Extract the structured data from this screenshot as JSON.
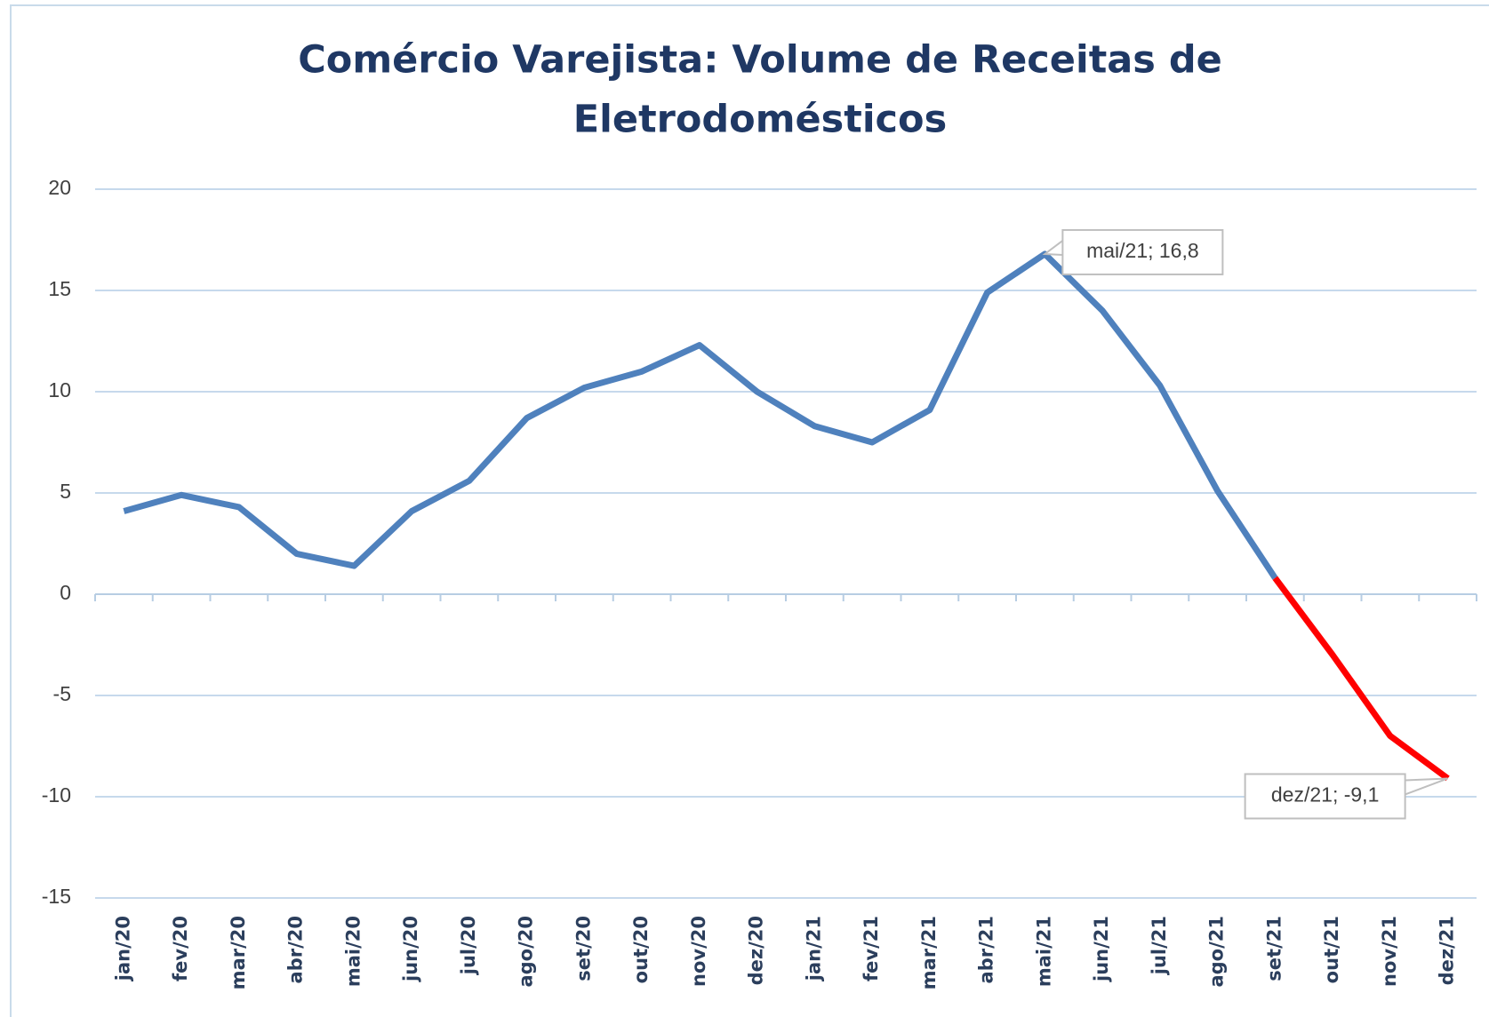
{
  "chart_data": {
    "type": "line",
    "title": "Comércio Varejista: Volume de Receitas de Eletrodomésticos",
    "categories": [
      "jan/20",
      "fev/20",
      "mar/20",
      "abr/20",
      "mai/20",
      "jun/20",
      "jul/20",
      "ago/20",
      "set/20",
      "out/20",
      "nov/20",
      "dez/20",
      "jan/21",
      "fev/21",
      "mar/21",
      "abr/21",
      "mai/21",
      "jun/21",
      "jul/21",
      "ago/21",
      "set/21",
      "out/21",
      "nov/21",
      "dez/21"
    ],
    "series": [
      {
        "color": "#4f81bd",
        "values": [
          4.1,
          4.9,
          4.3,
          2.0,
          1.4,
          4.1,
          5.6,
          8.7,
          10.2,
          11.0,
          12.3,
          10.0,
          8.3,
          7.5,
          9.1,
          14.9,
          16.8,
          14.0,
          10.3,
          5.1,
          0.8,
          null,
          null,
          null
        ],
        "value_labels": [
          null,
          null,
          null,
          null,
          null,
          null,
          null,
          null,
          null,
          null,
          null,
          null,
          null,
          null,
          null,
          null,
          "mai/21; 16,8",
          null,
          null,
          null,
          null,
          null,
          null,
          null
        ]
      },
      {
        "color": "#ff0000",
        "values": [
          null,
          null,
          null,
          null,
          null,
          null,
          null,
          null,
          null,
          null,
          null,
          null,
          null,
          null,
          null,
          null,
          null,
          null,
          null,
          null,
          0.8,
          -3.0,
          -7.0,
          -9.1
        ],
        "value_labels": [
          null,
          null,
          null,
          null,
          null,
          null,
          null,
          null,
          null,
          null,
          null,
          null,
          null,
          null,
          null,
          null,
          null,
          null,
          null,
          null,
          null,
          null,
          null,
          "dez/21; -9,1"
        ]
      }
    ],
    "ylim": [
      -15,
      20
    ],
    "yticks": [
      -15,
      -10,
      -5,
      0,
      5,
      10,
      15,
      20
    ],
    "grid": true
  }
}
